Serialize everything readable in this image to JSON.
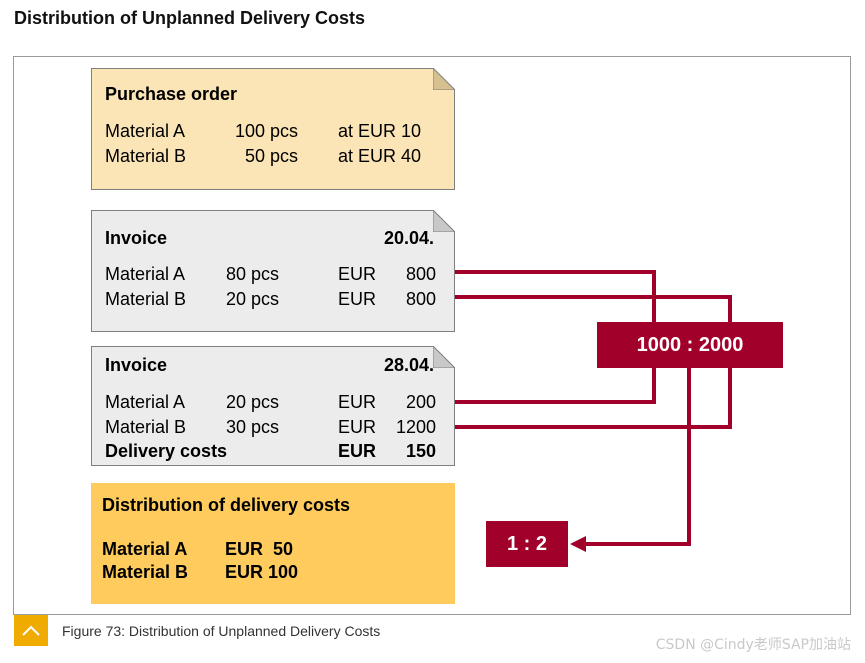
{
  "page_title": "Distribution of Unplanned Delivery Costs",
  "purchase_order": {
    "title": "Purchase order",
    "rows": [
      {
        "material": "Material A",
        "qty": "100 pcs",
        "price": "at EUR 10"
      },
      {
        "material": "Material B",
        "qty": "50 pcs",
        "price": "at EUR 40"
      }
    ]
  },
  "invoice1": {
    "title": "Invoice",
    "date": "20.04.",
    "rows": [
      {
        "material": "Material A",
        "qty": "80 pcs",
        "cur": "EUR",
        "amount": "800"
      },
      {
        "material": "Material B",
        "qty": "20 pcs",
        "cur": "EUR",
        "amount": "800"
      }
    ]
  },
  "invoice2": {
    "title": "Invoice",
    "date": "28.04.",
    "rows": [
      {
        "material": "Material A",
        "qty": "20 pcs",
        "cur": "EUR",
        "amount": "200"
      },
      {
        "material": "Material B",
        "qty": "30 pcs",
        "cur": "EUR",
        "amount": "1200"
      }
    ],
    "delivery": {
      "label": "Delivery costs",
      "cur": "EUR",
      "amount": "150"
    }
  },
  "distribution": {
    "title": "Distribution of delivery costs",
    "rows": [
      {
        "material": "Material A",
        "value": "EUR  50"
      },
      {
        "material": "Material B",
        "value": "EUR 100"
      }
    ]
  },
  "ratio_total": "1000 : 2000",
  "ratio_result": "1 : 2",
  "caption": "Figure 73: Distribution of Unplanned Delivery Costs",
  "watermark": "CSDN @Cindy老师SAP加油站",
  "colors": {
    "red": "#a0002a",
    "po_bg": "#fbe5b6",
    "invoice_bg": "#ececec",
    "dist_bg": "#fecb5c",
    "icon_bg": "#f0ab00"
  },
  "icons": {
    "caption": "chevron-up-icon"
  }
}
